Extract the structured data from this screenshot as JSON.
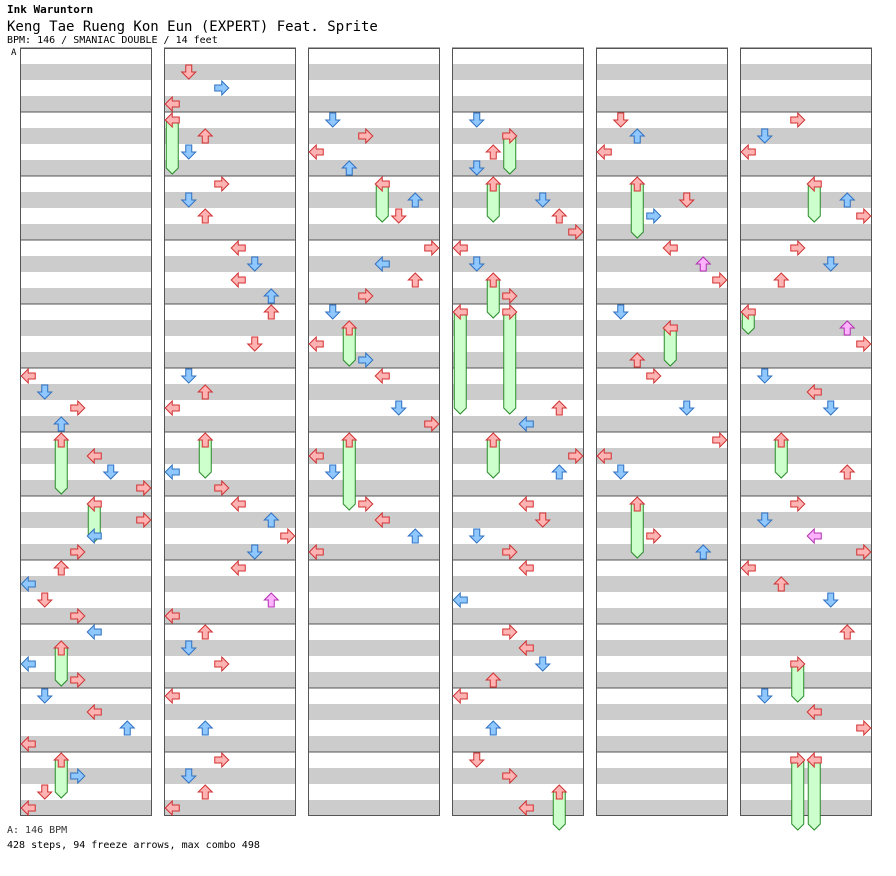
{
  "header": {
    "artist": "Ink Waruntorn",
    "title": "Keng Tae Rueng Kon Eun (EXPERT) Feat. Sprite",
    "meta": "BPM: 146 / SMANIAC DOUBLE / 14 feet"
  },
  "section_label": "A",
  "footer": {
    "bpm_line": "A: 146 BPM",
    "stats_line": "428 steps, 94 freeze arrows, max combo 498"
  },
  "colors": {
    "stripe": "#cccccc",
    "lane_bg": "#ffffff",
    "border": "#555555",
    "quarter_fill": "#ffb3b3",
    "quarter_stroke": "#d03030",
    "eighth_fill": "#8fc8ff",
    "eighth_stroke": "#2f70c0",
    "sixteenth_fill": "#ffb3ff",
    "sixteenth_stroke": "#b030b0",
    "freeze_fill": "#ccffcc",
    "freeze_stroke": "#2a8a2a"
  },
  "chart_data": {
    "type": "step-chart",
    "title": "Keng Tae Rueng Kon Eun (EXPERT) Feat. Sprite",
    "artist": "Ink Waruntorn",
    "bpm": 146,
    "style": "SMANIAC DOUBLE",
    "difficulty_feet": 14,
    "steps": 428,
    "freeze_arrows": 94,
    "max_combo": 498,
    "lanes": [
      "left-1",
      "down-1",
      "up-1",
      "right-1",
      "left-2",
      "down-2",
      "up-2",
      "right-2"
    ],
    "measures_per_column": 12,
    "columns": 6,
    "total_measures": 72,
    "notes": [
      {
        "m": 5.0,
        "lane": 0,
        "div": 4
      },
      {
        "m": 5.25,
        "lane": 1,
        "div": 8
      },
      {
        "m": 5.5,
        "lane": 3,
        "div": 4
      },
      {
        "m": 5.75,
        "lane": 2,
        "div": 8
      },
      {
        "m": 6.0,
        "lane": 2,
        "div": 4,
        "hold": 0.75
      },
      {
        "m": 6.25,
        "lane": 4,
        "div": 4
      },
      {
        "m": 6.5,
        "lane": 5,
        "div": 8
      },
      {
        "m": 6.75,
        "lane": 7,
        "div": 4
      },
      {
        "m": 7.0,
        "lane": 4,
        "div": 4,
        "hold": 0.5
      },
      {
        "m": 7.25,
        "lane": 7,
        "div": 4
      },
      {
        "m": 7.5,
        "lane": 4,
        "div": 8
      },
      {
        "m": 7.75,
        "lane": 3,
        "div": 4
      },
      {
        "m": 8.0,
        "lane": 2,
        "div": 4
      },
      {
        "m": 8.25,
        "lane": 0,
        "div": 8
      },
      {
        "m": 8.5,
        "lane": 1,
        "div": 4
      },
      {
        "m": 8.75,
        "lane": 3,
        "div": 4
      },
      {
        "m": 9.0,
        "lane": 4,
        "div": 8
      },
      {
        "m": 9.25,
        "lane": 2,
        "div": 4,
        "hold": 0.5
      },
      {
        "m": 9.5,
        "lane": 0,
        "div": 8
      },
      {
        "m": 9.75,
        "lane": 3,
        "div": 4
      },
      {
        "m": 10.0,
        "lane": 1,
        "div": 8
      },
      {
        "m": 10.25,
        "lane": 4,
        "div": 4
      },
      {
        "m": 10.5,
        "lane": 6,
        "div": 8
      },
      {
        "m": 10.75,
        "lane": 0,
        "div": 4
      },
      {
        "m": 11.0,
        "lane": 2,
        "div": 4,
        "hold": 0.5
      },
      {
        "m": 11.25,
        "lane": 3,
        "div": 8
      },
      {
        "m": 11.5,
        "lane": 1,
        "div": 4
      },
      {
        "m": 11.75,
        "lane": 0,
        "div": 4
      },
      {
        "m": 12.25,
        "lane": 1,
        "div": 4
      },
      {
        "m": 12.5,
        "lane": 3,
        "div": 8
      },
      {
        "m": 12.75,
        "lane": 0,
        "div": 4
      },
      {
        "m": 13.0,
        "lane": 0,
        "div": 4,
        "hold": 0.75
      },
      {
        "m": 13.25,
        "lane": 2,
        "div": 4
      },
      {
        "m": 13.5,
        "lane": 1,
        "div": 8
      },
      {
        "m": 14.0,
        "lane": 3,
        "div": 4
      },
      {
        "m": 14.25,
        "lane": 1,
        "div": 8
      },
      {
        "m": 14.5,
        "lane": 2,
        "div": 4
      },
      {
        "m": 15.0,
        "lane": 4,
        "div": 4
      },
      {
        "m": 15.25,
        "lane": 5,
        "div": 8
      },
      {
        "m": 15.5,
        "lane": 4,
        "div": 4
      },
      {
        "m": 15.75,
        "lane": 6,
        "div": 8
      },
      {
        "m": 16.0,
        "lane": 6,
        "div": 4
      },
      {
        "m": 16.5,
        "lane": 5,
        "div": 4
      },
      {
        "m": 17.0,
        "lane": 1,
        "div": 8
      },
      {
        "m": 17.25,
        "lane": 2,
        "div": 4
      },
      {
        "m": 17.5,
        "lane": 0,
        "div": 4
      },
      {
        "m": 18.0,
        "lane": 2,
        "div": 4,
        "hold": 0.5
      },
      {
        "m": 18.5,
        "lane": 0,
        "div": 8
      },
      {
        "m": 18.75,
        "lane": 3,
        "div": 4
      },
      {
        "m": 19.0,
        "lane": 4,
        "div": 4
      },
      {
        "m": 19.25,
        "lane": 6,
        "div": 8
      },
      {
        "m": 19.5,
        "lane": 7,
        "div": 4
      },
      {
        "m": 19.75,
        "lane": 5,
        "div": 8
      },
      {
        "m": 20.0,
        "lane": 4,
        "div": 4
      },
      {
        "m": 20.5,
        "lane": 6,
        "div": 16
      },
      {
        "m": 20.75,
        "lane": 0,
        "div": 4
      },
      {
        "m": 21.0,
        "lane": 2,
        "div": 4
      },
      {
        "m": 21.25,
        "lane": 1,
        "div": 8
      },
      {
        "m": 21.5,
        "lane": 3,
        "div": 4
      },
      {
        "m": 22.0,
        "lane": 0,
        "div": 4
      },
      {
        "m": 22.5,
        "lane": 2,
        "div": 8
      },
      {
        "m": 23.0,
        "lane": 3,
        "div": 4
      },
      {
        "m": 23.25,
        "lane": 1,
        "div": 8
      },
      {
        "m": 23.5,
        "lane": 2,
        "div": 4
      },
      {
        "m": 23.75,
        "lane": 0,
        "div": 4
      },
      {
        "m": 25.0,
        "lane": 1,
        "div": 8
      },
      {
        "m": 25.25,
        "lane": 3,
        "div": 4
      },
      {
        "m": 25.5,
        "lane": 0,
        "div": 4
      },
      {
        "m": 25.75,
        "lane": 2,
        "div": 8
      },
      {
        "m": 26.0,
        "lane": 4,
        "div": 4,
        "hold": 0.5
      },
      {
        "m": 26.25,
        "lane": 6,
        "div": 8
      },
      {
        "m": 26.5,
        "lane": 5,
        "div": 4
      },
      {
        "m": 27.0,
        "lane": 7,
        "div": 4
      },
      {
        "m": 27.25,
        "lane": 4,
        "div": 8
      },
      {
        "m": 27.5,
        "lane": 6,
        "div": 4
      },
      {
        "m": 27.75,
        "lane": 3,
        "div": 4
      },
      {
        "m": 28.0,
        "lane": 1,
        "div": 8
      },
      {
        "m": 28.25,
        "lane": 2,
        "div": 4,
        "hold": 0.5
      },
      {
        "m": 28.5,
        "lane": 0,
        "div": 4
      },
      {
        "m": 28.75,
        "lane": 3,
        "div": 8
      },
      {
        "m": 29.0,
        "lane": 4,
        "div": 4
      },
      {
        "m": 29.5,
        "lane": 5,
        "div": 8
      },
      {
        "m": 29.75,
        "lane": 7,
        "div": 4
      },
      {
        "m": 30.0,
        "lane": 2,
        "div": 4,
        "hold": 1.0
      },
      {
        "m": 30.25,
        "lane": 0,
        "div": 4
      },
      {
        "m": 30.5,
        "lane": 1,
        "div": 8
      },
      {
        "m": 31.0,
        "lane": 3,
        "div": 4
      },
      {
        "m": 31.25,
        "lane": 4,
        "div": 4
      },
      {
        "m": 31.5,
        "lane": 6,
        "div": 8
      },
      {
        "m": 31.75,
        "lane": 0,
        "div": 4
      },
      {
        "m": 37.0,
        "lane": 1,
        "div": 8
      },
      {
        "m": 37.25,
        "lane": 3,
        "div": 4,
        "hold": 0.5
      },
      {
        "m": 37.5,
        "lane": 2,
        "div": 4
      },
      {
        "m": 37.75,
        "lane": 1,
        "div": 8
      },
      {
        "m": 38.0,
        "lane": 2,
        "div": 4,
        "hold": 0.5
      },
      {
        "m": 38.25,
        "lane": 5,
        "div": 8
      },
      {
        "m": 38.5,
        "lane": 6,
        "div": 4
      },
      {
        "m": 38.75,
        "lane": 7,
        "div": 4
      },
      {
        "m": 39.0,
        "lane": 0,
        "div": 4
      },
      {
        "m": 39.25,
        "lane": 1,
        "div": 8
      },
      {
        "m": 39.5,
        "lane": 2,
        "div": 4,
        "hold": 0.5
      },
      {
        "m": 39.75,
        "lane": 3,
        "div": 4
      },
      {
        "m": 40.0,
        "lane": 0,
        "div": 4,
        "hold": 1.5
      },
      {
        "m": 40.0,
        "lane": 3,
        "div": 4,
        "hold": 1.5
      },
      {
        "m": 41.5,
        "lane": 6,
        "div": 4
      },
      {
        "m": 41.75,
        "lane": 4,
        "div": 8
      },
      {
        "m": 42.0,
        "lane": 2,
        "div": 4,
        "hold": 0.5
      },
      {
        "m": 42.25,
        "lane": 7,
        "div": 4
      },
      {
        "m": 42.5,
        "lane": 6,
        "div": 8
      },
      {
        "m": 43.0,
        "lane": 4,
        "div": 4
      },
      {
        "m": 43.25,
        "lane": 5,
        "div": 4
      },
      {
        "m": 43.5,
        "lane": 1,
        "div": 8
      },
      {
        "m": 43.75,
        "lane": 3,
        "div": 4
      },
      {
        "m": 44.0,
        "lane": 4,
        "div": 4
      },
      {
        "m": 44.5,
        "lane": 0,
        "div": 8
      },
      {
        "m": 45.0,
        "lane": 3,
        "div": 4
      },
      {
        "m": 45.25,
        "lane": 4,
        "div": 4
      },
      {
        "m": 45.5,
        "lane": 5,
        "div": 8
      },
      {
        "m": 45.75,
        "lane": 2,
        "div": 4
      },
      {
        "m": 46.0,
        "lane": 0,
        "div": 4
      },
      {
        "m": 46.5,
        "lane": 2,
        "div": 8
      },
      {
        "m": 47.0,
        "lane": 1,
        "div": 4
      },
      {
        "m": 47.25,
        "lane": 3,
        "div": 4
      },
      {
        "m": 47.5,
        "lane": 6,
        "div": 4,
        "hold": 0.5
      },
      {
        "m": 47.75,
        "lane": 4,
        "div": 4
      },
      {
        "m": 49.0,
        "lane": 1,
        "div": 4
      },
      {
        "m": 49.25,
        "lane": 2,
        "div": 8
      },
      {
        "m": 49.5,
        "lane": 0,
        "div": 4
      },
      {
        "m": 50.0,
        "lane": 2,
        "div": 4,
        "hold": 0.75
      },
      {
        "m": 50.25,
        "lane": 5,
        "div": 4
      },
      {
        "m": 50.5,
        "lane": 3,
        "div": 8
      },
      {
        "m": 51.0,
        "lane": 4,
        "div": 4
      },
      {
        "m": 51.25,
        "lane": 6,
        "div": 16
      },
      {
        "m": 51.5,
        "lane": 7,
        "div": 4
      },
      {
        "m": 52.0,
        "lane": 1,
        "div": 8
      },
      {
        "m": 52.25,
        "lane": 4,
        "div": 4,
        "hold": 0.5
      },
      {
        "m": 52.75,
        "lane": 2,
        "div": 4
      },
      {
        "m": 53.0,
        "lane": 3,
        "div": 4
      },
      {
        "m": 53.5,
        "lane": 5,
        "div": 8
      },
      {
        "m": 54.0,
        "lane": 7,
        "div": 4
      },
      {
        "m": 54.25,
        "lane": 0,
        "div": 4
      },
      {
        "m": 54.5,
        "lane": 1,
        "div": 8
      },
      {
        "m": 55.0,
        "lane": 2,
        "div": 4,
        "hold": 0.75
      },
      {
        "m": 55.5,
        "lane": 3,
        "div": 4
      },
      {
        "m": 55.75,
        "lane": 6,
        "div": 8
      },
      {
        "m": 61.0,
        "lane": 3,
        "div": 4
      },
      {
        "m": 61.25,
        "lane": 1,
        "div": 8
      },
      {
        "m": 61.5,
        "lane": 0,
        "div": 4
      },
      {
        "m": 62.0,
        "lane": 4,
        "div": 4,
        "hold": 0.5
      },
      {
        "m": 62.25,
        "lane": 6,
        "div": 8
      },
      {
        "m": 62.5,
        "lane": 7,
        "div": 4
      },
      {
        "m": 63.0,
        "lane": 3,
        "div": 4
      },
      {
        "m": 63.25,
        "lane": 5,
        "div": 8
      },
      {
        "m": 63.5,
        "lane": 2,
        "div": 4
      },
      {
        "m": 64.0,
        "lane": 0,
        "div": 4,
        "hold": 0.25
      },
      {
        "m": 64.25,
        "lane": 6,
        "div": 16
      },
      {
        "m": 64.5,
        "lane": 7,
        "div": 4
      },
      {
        "m": 65.0,
        "lane": 1,
        "div": 8
      },
      {
        "m": 65.25,
        "lane": 4,
        "div": 4
      },
      {
        "m": 65.5,
        "lane": 5,
        "div": 8
      },
      {
        "m": 66.0,
        "lane": 2,
        "div": 4,
        "hold": 0.5
      },
      {
        "m": 66.5,
        "lane": 6,
        "div": 4
      },
      {
        "m": 67.0,
        "lane": 3,
        "div": 4
      },
      {
        "m": 67.25,
        "lane": 1,
        "div": 8
      },
      {
        "m": 67.5,
        "lane": 4,
        "div": 16
      },
      {
        "m": 67.75,
        "lane": 7,
        "div": 4
      },
      {
        "m": 68.0,
        "lane": 0,
        "div": 4
      },
      {
        "m": 68.25,
        "lane": 2,
        "div": 4
      },
      {
        "m": 68.5,
        "lane": 5,
        "div": 8
      },
      {
        "m": 69.0,
        "lane": 6,
        "div": 4
      },
      {
        "m": 69.5,
        "lane": 3,
        "div": 4,
        "hold": 0.5
      },
      {
        "m": 70.0,
        "lane": 1,
        "div": 8
      },
      {
        "m": 70.25,
        "lane": 4,
        "div": 4
      },
      {
        "m": 70.5,
        "lane": 7,
        "div": 4
      },
      {
        "m": 71.0,
        "lane": 3,
        "div": 4,
        "hold": 1.0
      },
      {
        "m": 71.0,
        "lane": 4,
        "div": 4,
        "hold": 1.0
      }
    ]
  }
}
